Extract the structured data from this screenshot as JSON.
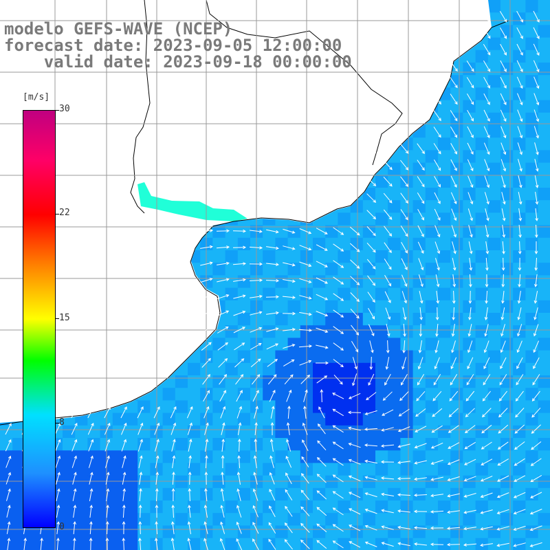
{
  "title": {
    "line1": "modelo GEFS-WAVE (NCEP)",
    "line2": "forecast date: 2023-09-05 12:00:00",
    "line3": "    valid date: 2023-09-18 00:00:00"
  },
  "colorbar": {
    "units": "[m/s]",
    "ticks": [
      "30",
      "22",
      "15",
      "8",
      "0"
    ],
    "tick_values": [
      30,
      22,
      15,
      8,
      0
    ]
  },
  "map": {
    "variable": "wind",
    "land_color": "#ffffff",
    "coastline_color": "#000000",
    "grid_color": "#999999"
  }
}
